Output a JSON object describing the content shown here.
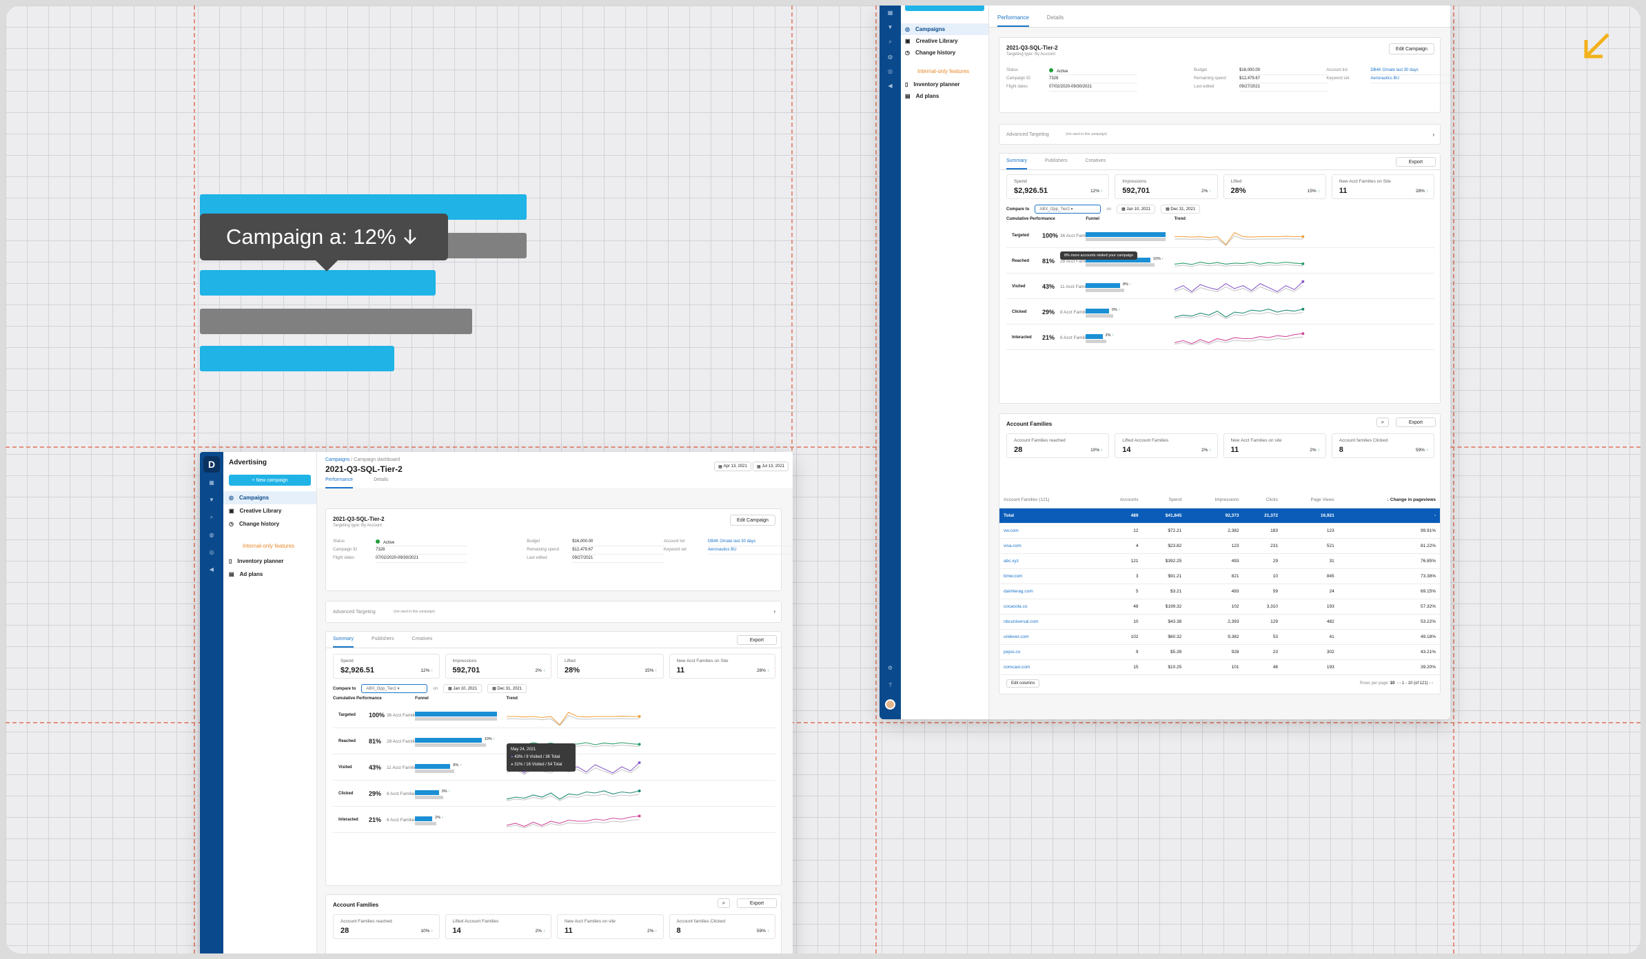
{
  "hero": {
    "tooltip": "Campaign a: 12%",
    "tooltip_arrow": "arrow-down-icon"
  },
  "colors": {
    "accent": "#1fb3e6",
    "brand": "#0a4a8c",
    "link": "#1a73c8",
    "positive": "#1e9e3a",
    "guide": "#e2907e",
    "corner_arrow": "#f2b21b"
  },
  "app": {
    "product": "Advertising",
    "logo": "D",
    "new_campaign": "+ New campaign",
    "nav": [
      {
        "label": "Campaigns",
        "icon": "target-icon"
      },
      {
        "label": "Creative Library",
        "icon": "library-icon"
      },
      {
        "label": "Change history",
        "icon": "history-icon"
      }
    ],
    "internal_label": "Internal-only features",
    "internal_nav": [
      {
        "label": "Inventory planner",
        "icon": "planner-icon"
      },
      {
        "label": "Ad plans",
        "icon": "plans-icon"
      }
    ],
    "breadcrumb_root": "Campaigns",
    "breadcrumb_sep": " / ",
    "breadcrumb_current": "Campaign dashboard",
    "page_title": "2021-Q3-SQL-Tier-2",
    "date_start": "Apr 13, 2021",
    "date_end": "Jul 13, 2021",
    "tabs": [
      "Performance",
      "Details"
    ],
    "campaign": {
      "name": "2021-Q3-SQL-Tier-2",
      "targeting": "Targeting type: By Account",
      "edit": "Edit Campaign",
      "fields": [
        {
          "k": "Status",
          "v": "Active"
        },
        {
          "k": "Campaign ID",
          "v": "7328"
        },
        {
          "k": "Flight dates",
          "v": "07/02/2020-09/30/2021"
        },
        {
          "k": "Budget",
          "v": "$16,000.00"
        },
        {
          "k": "Remaining spend",
          "v": "$12,479.67"
        },
        {
          "k": "Last edited",
          "v": "09/27/2021"
        },
        {
          "k": "Account list",
          "v": "DB4K Ornate last 30 days"
        },
        {
          "k": "Keyword set",
          "v": "Aeronautics BU"
        }
      ]
    },
    "advanced": "Advanced Targeting",
    "advanced_note": "(not used in this campaign)",
    "summary_tabs": [
      "Summary",
      "Publishers",
      "Creatives"
    ],
    "export": "Export",
    "metrics": [
      {
        "label": "Spend",
        "value": "$2,926.51",
        "change": "12%"
      },
      {
        "label": "Impressions",
        "value": "592,701",
        "change": "2%"
      },
      {
        "label": "Lifted",
        "value": "28%",
        "change": "15%"
      },
      {
        "label": "New Acct Families on Site",
        "value": "11",
        "change": "28%"
      }
    ],
    "compare_label": "Compare to",
    "compare_value": "ABX_Opp_Tier2",
    "on": "on",
    "compare_start": "Jan 10, 2021",
    "compare_end": "Dec 31, 2021",
    "perf_headers": [
      "Cumulative Performance",
      "Funnel",
      "Trend"
    ],
    "funnel": [
      {
        "stage": "Targeted",
        "pct": "100%",
        "families": "36 Acct Families",
        "fill": 1.0,
        "delta": ""
      },
      {
        "stage": "Reached",
        "pct": "81%",
        "families": "28 Acct Families",
        "fill": 0.81,
        "delta": "10%"
      },
      {
        "stage": "Visited",
        "pct": "43%",
        "families": "11 Acct Families",
        "fill": 0.43,
        "delta": "8%"
      },
      {
        "stage": "Clicked",
        "pct": "29%",
        "families": "8 Acct Families",
        "fill": 0.29,
        "delta": "0%"
      },
      {
        "stage": "Interacted",
        "pct": "21%",
        "families": "6 Acct Families",
        "fill": 0.21,
        "delta": "2%"
      }
    ],
    "funnel_tooltip": "8% more accounts visited your campaign",
    "trend_tooltip": {
      "date": "May 24, 2021",
      "line1": "43% / 9 Visited / 36 Total",
      "line2": "31% / 16 Visited / 54 Total"
    },
    "af_title": "Account Families",
    "af_metrics": [
      {
        "label": "Account Families reached",
        "value": "28",
        "change": "10%"
      },
      {
        "label": "Lifted Account Families",
        "value": "14",
        "change": "2%"
      },
      {
        "label": "New Acct Families on site",
        "value": "11",
        "change": "2%"
      },
      {
        "label": "Account families Clicked",
        "value": "8",
        "change": "59%"
      }
    ],
    "table": {
      "headers": [
        "Account Families (121)",
        "Accounts",
        "Spend",
        "Impressions",
        "Clicks",
        "Page Views",
        "Change in pageviews"
      ],
      "total": [
        "Total",
        "489",
        "$41,845",
        "92,373",
        "21,372",
        "16,921",
        "-"
      ],
      "rows": [
        [
          "vw.com",
          "12",
          "$72.21",
          "2,382",
          "183",
          "123",
          "99.91%"
        ],
        [
          "visa.com",
          "4",
          "$23.82",
          "123",
          "231",
          "521",
          "81.22%"
        ],
        [
          "abc.xyz",
          "121",
          "$392.25",
          "493",
          "29",
          "31",
          "76.85%"
        ],
        [
          "bmw.com",
          "3",
          "$91.21",
          "821",
          "10",
          "845",
          "73.38%"
        ],
        [
          "daimlerag.com",
          "5",
          "$3.21",
          "493",
          "59",
          "24",
          "69.15%"
        ],
        [
          "cocacola.co",
          "48",
          "$199.32",
          "102",
          "3,310",
          "193",
          "57.32%"
        ],
        [
          "nbcuniversal.com",
          "10",
          "$43.38",
          "2,393",
          "129",
          "482",
          "53.22%"
        ],
        [
          "unilever.com",
          "102",
          "$60.32",
          "9,382",
          "53",
          "41",
          "49.18%"
        ],
        [
          "pepsi.co",
          "9",
          "$5.39",
          "928",
          "23",
          "302",
          "43.21%"
        ],
        [
          "comcast.com",
          "15",
          "$10.25",
          "101",
          "48",
          "193",
          "39.20%"
        ]
      ],
      "edit_columns": "Edit columns",
      "rows_per_page": "Rows per page:",
      "rows_value": "10",
      "range": "1 - 10 (of 121)"
    }
  }
}
